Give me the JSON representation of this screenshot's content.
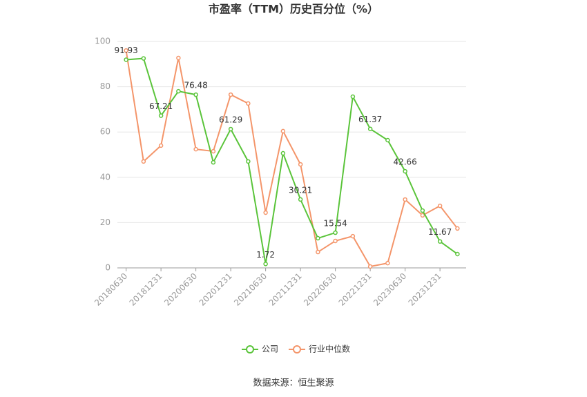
{
  "chart_data": {
    "type": "line",
    "title": "市盈率（TTM）历史百分位（%）",
    "source": "数据来源：恒生聚源",
    "categories": [
      "20180630",
      null,
      "20181231",
      null,
      "20200630",
      null,
      "20201231",
      null,
      "20210630",
      null,
      "20211231",
      null,
      "20220630",
      null,
      "20221231",
      null,
      "20230630",
      null,
      "20231231",
      null
    ],
    "series": [
      {
        "name": "公司",
        "color": "#5ac43a",
        "values": [
          91.93,
          92.5,
          67.21,
          78,
          76.48,
          46.6,
          61.29,
          47,
          1.72,
          50.6,
          30.21,
          13.1,
          15.54,
          75.6,
          61.37,
          56.4,
          42.66,
          25.3,
          11.67,
          6.1
        ],
        "value_labels": [
          "91.93",
          null,
          "67.21",
          null,
          "76.48",
          null,
          "61.29",
          null,
          "1.72",
          null,
          "30.21",
          null,
          "15.54",
          null,
          "61.37",
          null,
          "42.66",
          null,
          "11.67",
          null
        ]
      },
      {
        "name": "行业中位数",
        "color": "#f4956a",
        "values": [
          96,
          47,
          54,
          92.7,
          52.4,
          51.5,
          76.5,
          72.6,
          24.4,
          60.4,
          45.7,
          7,
          11.9,
          14,
          0.6,
          2.1,
          30.2,
          23.2,
          27.4,
          17.4
        ]
      }
    ],
    "ylim": [
      0,
      100
    ],
    "yticks": [
      0,
      20,
      40,
      60,
      80,
      100
    ],
    "grid": true
  }
}
